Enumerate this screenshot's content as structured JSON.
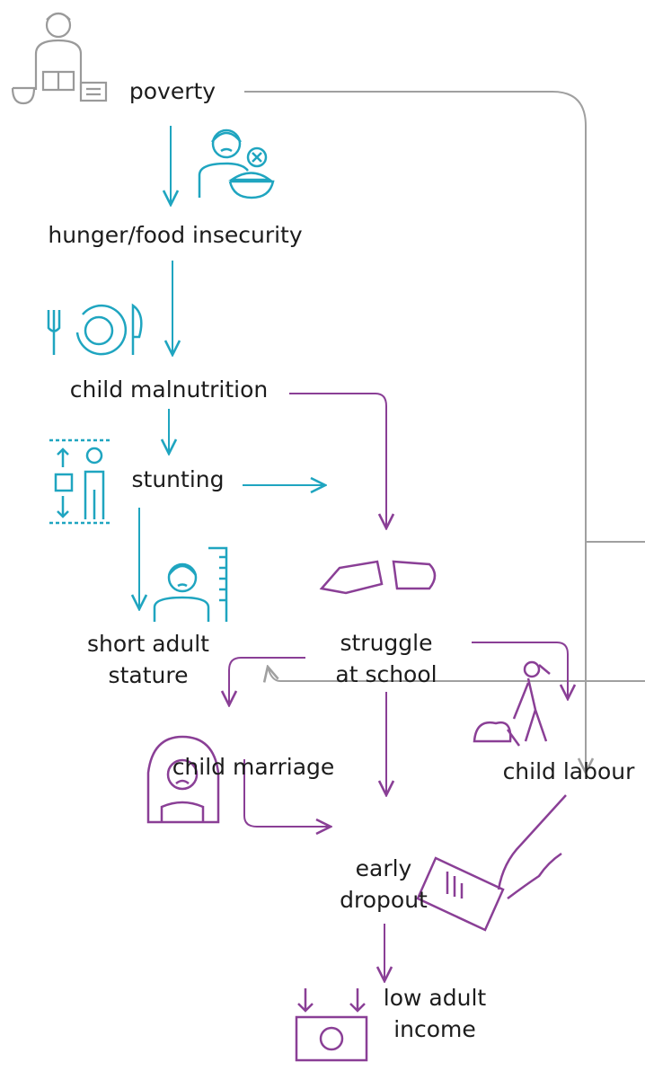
{
  "nodes": [
    {
      "lines": [
        "poverty"
      ]
    },
    {
      "lines": [
        "hunger/food insecurity"
      ]
    },
    {
      "lines": [
        "child malnutrition"
      ]
    },
    {
      "lines": [
        "stunting"
      ]
    },
    {
      "lines": [
        "short adult",
        "stature"
      ]
    },
    {
      "lines": [
        "struggle",
        "at school"
      ]
    },
    {
      "lines": [
        "child marriage"
      ]
    },
    {
      "lines": [
        "child labour"
      ]
    },
    {
      "lines": [
        "early",
        "dropout"
      ]
    },
    {
      "lines": [
        "low adult",
        "income"
      ]
    }
  ]
}
